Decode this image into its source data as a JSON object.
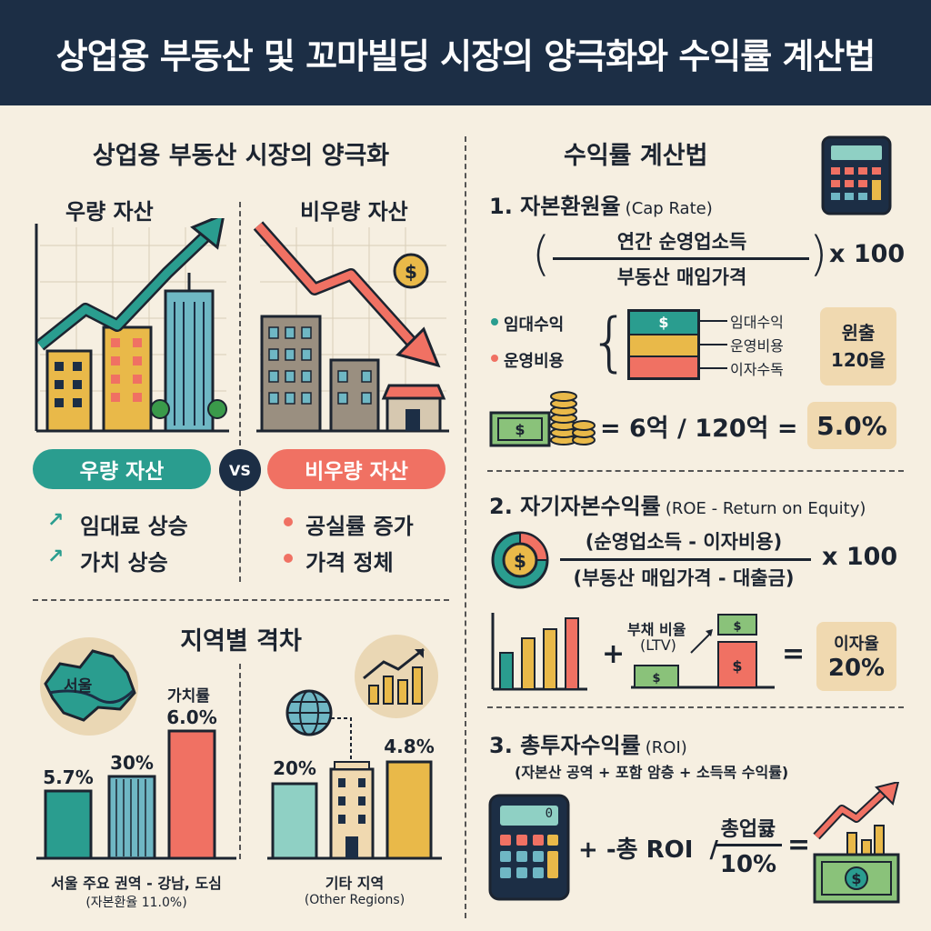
{
  "header": {
    "title": "상업용 부동산 및 꼬마빌딩 시장의 양극화와 수익률 계산법"
  },
  "left": {
    "polarization": {
      "title": "상업용 부동산 시장의 양극화",
      "good_label": "우량 자산",
      "bad_label": "비우량 자산",
      "good_pill": "우량 자산",
      "bad_pill": "비우량 자산",
      "vs": "VS",
      "good_points": [
        "임대료 상승",
        "가치 상승"
      ],
      "bad_points": [
        "공실률 증가",
        "가격 정체"
      ]
    },
    "regional": {
      "title": "지역별 격차",
      "map_label": "서울",
      "seoul_bars": [
        {
          "label": "5.7%",
          "value": 5.7
        },
        {
          "label": "30%",
          "value": 30
        },
        {
          "label": "6.0%",
          "value": 6.0
        }
      ],
      "value_label": "가치률",
      "seoul_caption": "서울 주요 권역 - 강남, 도심",
      "seoul_sub": "(자본환율 11.0%)",
      "other_bars": [
        {
          "label": "20%",
          "value": 20
        },
        {
          "label": "4.8%",
          "value": 4.8
        }
      ],
      "other_caption": "기타 지역",
      "other_sub": "(Other Regions)"
    }
  },
  "right": {
    "title": "수익률 계산법",
    "cap_rate": {
      "heading": "1. 자본환원율",
      "heading_en": "(Cap Rate)",
      "numerator": "연간 순영업소득",
      "denominator": "부동산 매입가격",
      "multiplier": "x 100",
      "legend": [
        "임대수익",
        "운영비용"
      ],
      "stack_labels": [
        "임대수익",
        "운영비용",
        "이자수독"
      ],
      "stack_symbol": "$",
      "box": "윈출 120을",
      "equation": "= 6억 / 120억 =",
      "result": "5.0%"
    },
    "roe": {
      "heading": "2. 자기자본수익률",
      "heading_en": "(ROE - Return on Equity)",
      "numerator": "(순영업소득 - 이자비용)",
      "denominator": "(부동산 매입가격 - 대출금)",
      "multiplier": "x 100",
      "ltv_label": "부채 비율",
      "ltv_sub": "(LTV)",
      "plus": "+",
      "equals": "=",
      "box_label": "이자율",
      "box_value": "20%"
    },
    "roi": {
      "heading": "3. 총투자수익률",
      "heading_en": "(ROI)",
      "sub": "(자본산 공역 + 포함 암층 + 소득목 수익률)",
      "calc_display": "0",
      "formula": "+ -총 ROI  /",
      "frac_top": "총업큟",
      "frac_bottom": "10%",
      "equals": "="
    }
  },
  "colors": {
    "navy": "#1c2e45",
    "teal": "#2a9d8f",
    "coral": "#f07163",
    "gold": "#e9b949",
    "beige": "#f0d9b0",
    "cream": "#f6efe1"
  }
}
